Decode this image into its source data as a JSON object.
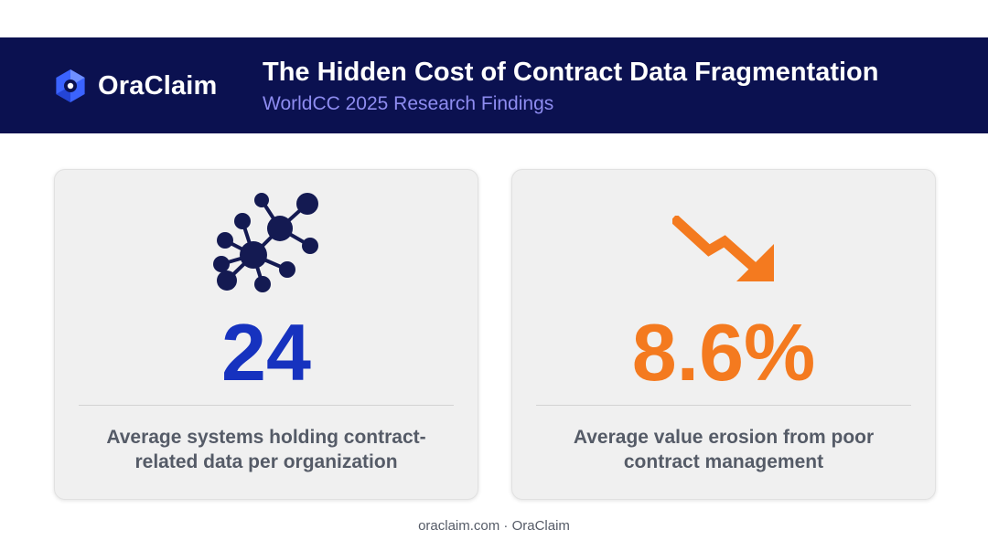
{
  "header": {
    "logo_text": "OraClaim",
    "title": "The Hidden Cost of Contract Data Fragmentation",
    "subtitle": "WorldCC 2025 Research Findings"
  },
  "cards": [
    {
      "icon": "network-icon",
      "value": "24",
      "description_line1": "Average systems holding contract-",
      "description_line2": "related data per organization",
      "accent": "#1632bf"
    },
    {
      "icon": "trend-down-arrow-icon",
      "value": "8.6%",
      "description_line1": "Average value erosion from poor",
      "description_line2": "contract management",
      "accent": "#f47a1f"
    }
  ],
  "footer": {
    "text": "oraclaim.com · OraClaim"
  },
  "colors": {
    "banner": "#0b1150",
    "subtitle": "#8e8cf0",
    "card_bg": "#f0f0f0",
    "text_gray": "#555b67"
  }
}
